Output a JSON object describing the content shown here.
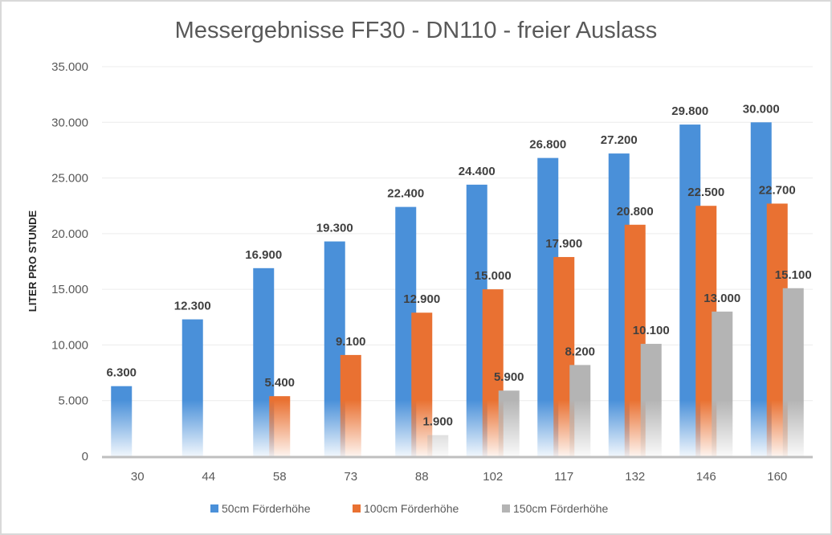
{
  "chart_data": {
    "type": "bar",
    "title": "Messergebnisse FF30 - DN110 - freier Auslass",
    "xlabel": "",
    "ylabel": "LITER PRO STUNDE",
    "ylim": [
      0,
      35000
    ],
    "yticks": [
      "0",
      "5.000",
      "10.000",
      "15.000",
      "20.000",
      "25.000",
      "30.000",
      "35.000"
    ],
    "grid": true,
    "legend": "bottom",
    "categories": [
      "30",
      "44",
      "58",
      "73",
      "88",
      "102",
      "117",
      "132",
      "146",
      "160"
    ],
    "series": [
      {
        "name": "50cm Förderhöhe",
        "color": "#4a90d9",
        "values": [
          6300,
          12300,
          16900,
          19300,
          22400,
          24400,
          26800,
          27200,
          29800,
          30000
        ],
        "labels": [
          "6.300",
          "12.300",
          "16.900",
          "19.300",
          "22.400",
          "24.400",
          "26.800",
          "27.200",
          "29.800",
          "30.000"
        ]
      },
      {
        "name": "100cm Förderhöhe",
        "color": "#e97132",
        "values": [
          null,
          null,
          5400,
          9100,
          12900,
          15000,
          17900,
          20800,
          22500,
          22700
        ],
        "labels": [
          null,
          null,
          "5.400",
          "9.100",
          "12.900",
          "15.000",
          "17.900",
          "20.800",
          "22.500",
          "22.700"
        ]
      },
      {
        "name": "150cm Förderhöhe",
        "color": "#b4b4b4",
        "values": [
          null,
          null,
          null,
          null,
          1900,
          5900,
          8200,
          10100,
          13000,
          15100
        ],
        "labels": [
          null,
          null,
          null,
          null,
          "1.900",
          "5.900",
          "8.200",
          "10.100",
          "13.000",
          "15.100"
        ]
      }
    ]
  }
}
